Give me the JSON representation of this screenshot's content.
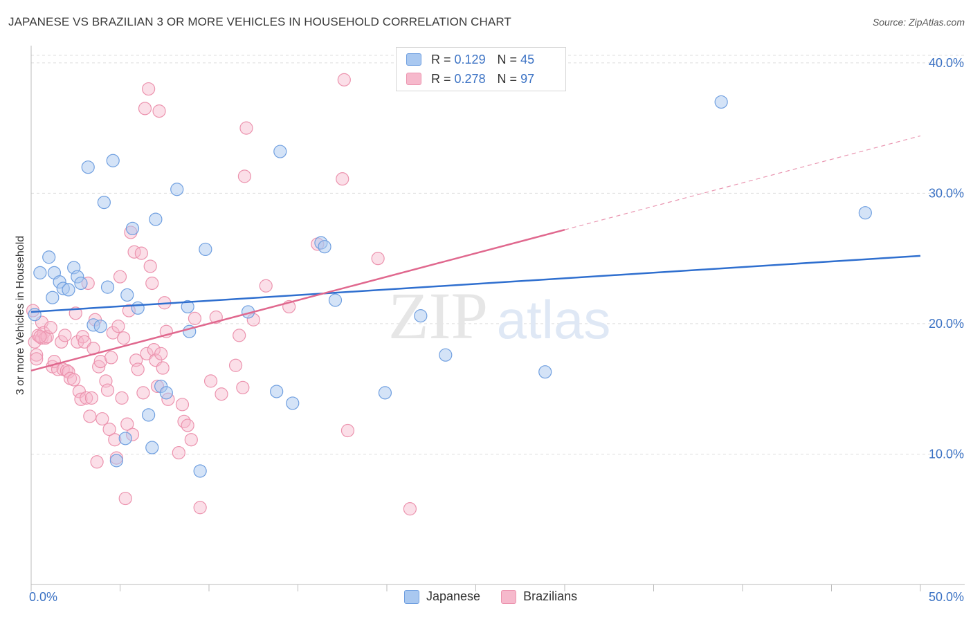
{
  "title": "JAPANESE VS BRAZILIAN 3 OR MORE VEHICLES IN HOUSEHOLD CORRELATION CHART",
  "source": "Source: ZipAtlas.com",
  "watermark": {
    "zip": "ZIP",
    "atlas": "atlas"
  },
  "legend": {
    "r_label": "R =",
    "n_label": "N =",
    "japanese": {
      "r": "0.129",
      "n": "45"
    },
    "brazilians": {
      "r": "0.278",
      "n": "97"
    }
  },
  "colors": {
    "japanese_fill": "#a9c8f0",
    "japanese_stroke": "#6f9fe0",
    "japanese_line": "#2f6fcf",
    "brazilians_fill": "#f6b9cc",
    "brazilians_stroke": "#ec93ae",
    "brazilians_line": "#e0688e",
    "tick_label": "#3b72c4",
    "grid": "#dddddd"
  },
  "chart_data": {
    "type": "scatter",
    "title": "JAPANESE VS BRAZILIAN 3 OR MORE VEHICLES IN HOUSEHOLD CORRELATION CHART",
    "xlabel": "",
    "ylabel": "3 or more Vehicles in Household",
    "xlim": [
      0,
      50
    ],
    "ylim": [
      0,
      41
    ],
    "x_tick_labels": [
      "0.0%",
      "50.0%"
    ],
    "y_ticks": [
      10,
      20,
      30,
      40
    ],
    "y_tick_labels": [
      "10.0%",
      "20.0%",
      "30.0%",
      "40.0%"
    ],
    "grid": true,
    "legend_position": "top-center",
    "series": [
      {
        "name": "Japanese",
        "points": [
          [
            0.5,
            23.9
          ],
          [
            1.0,
            25.1
          ],
          [
            1.2,
            22.0
          ],
          [
            1.3,
            23.9
          ],
          [
            1.6,
            23.2
          ],
          [
            1.8,
            22.7
          ],
          [
            2.1,
            22.6
          ],
          [
            2.4,
            24.3
          ],
          [
            2.6,
            23.6
          ],
          [
            2.8,
            23.1
          ],
          [
            3.2,
            32.0
          ],
          [
            3.5,
            19.9
          ],
          [
            3.9,
            19.8
          ],
          [
            4.1,
            29.3
          ],
          [
            4.3,
            22.8
          ],
          [
            4.6,
            32.5
          ],
          [
            4.8,
            9.5
          ],
          [
            5.3,
            11.2
          ],
          [
            5.4,
            22.2
          ],
          [
            5.7,
            27.3
          ],
          [
            6.0,
            21.2
          ],
          [
            6.6,
            13.0
          ],
          [
            6.8,
            10.5
          ],
          [
            7.0,
            28.0
          ],
          [
            7.3,
            15.2
          ],
          [
            7.6,
            14.7
          ],
          [
            8.2,
            30.3
          ],
          [
            8.8,
            21.3
          ],
          [
            8.9,
            19.4
          ],
          [
            9.5,
            8.7
          ],
          [
            9.8,
            25.7
          ],
          [
            12.2,
            20.9
          ],
          [
            13.8,
            14.8
          ],
          [
            14.0,
            33.2
          ],
          [
            14.7,
            13.9
          ],
          [
            16.3,
            26.2
          ],
          [
            16.5,
            25.9
          ],
          [
            17.1,
            21.8
          ],
          [
            19.9,
            14.7
          ],
          [
            21.9,
            20.6
          ],
          [
            23.3,
            17.6
          ],
          [
            28.9,
            16.3
          ],
          [
            38.8,
            37.0
          ],
          [
            46.9,
            28.5
          ],
          [
            0.2,
            20.7
          ]
        ],
        "trend": {
          "x": [
            0,
            50
          ],
          "y": [
            20.9,
            25.2
          ]
        }
      },
      {
        "name": "Brazilians",
        "points": [
          [
            0.2,
            18.6
          ],
          [
            0.3,
            17.6
          ],
          [
            0.4,
            19.1
          ],
          [
            0.6,
            20.1
          ],
          [
            0.6,
            18.9
          ],
          [
            0.7,
            19.3
          ],
          [
            0.8,
            18.9
          ],
          [
            0.9,
            19.0
          ],
          [
            1.1,
            19.7
          ],
          [
            1.2,
            16.7
          ],
          [
            1.3,
            17.1
          ],
          [
            1.5,
            16.5
          ],
          [
            1.7,
            18.6
          ],
          [
            1.8,
            16.5
          ],
          [
            1.9,
            19.1
          ],
          [
            2.0,
            16.4
          ],
          [
            2.1,
            16.3
          ],
          [
            2.2,
            15.8
          ],
          [
            2.4,
            15.7
          ],
          [
            2.5,
            20.8
          ],
          [
            2.6,
            18.6
          ],
          [
            2.7,
            14.8
          ],
          [
            2.8,
            14.2
          ],
          [
            2.9,
            19.0
          ],
          [
            3.0,
            18.6
          ],
          [
            3.1,
            14.3
          ],
          [
            3.2,
            23.1
          ],
          [
            3.3,
            12.9
          ],
          [
            3.4,
            14.3
          ],
          [
            3.5,
            18.1
          ],
          [
            3.6,
            20.3
          ],
          [
            3.7,
            9.4
          ],
          [
            3.8,
            16.7
          ],
          [
            3.9,
            17.1
          ],
          [
            4.0,
            12.7
          ],
          [
            4.2,
            15.6
          ],
          [
            4.3,
            14.9
          ],
          [
            4.4,
            11.9
          ],
          [
            4.5,
            17.4
          ],
          [
            4.6,
            19.3
          ],
          [
            4.7,
            11.1
          ],
          [
            4.8,
            9.7
          ],
          [
            4.9,
            19.8
          ],
          [
            5.0,
            23.6
          ],
          [
            5.1,
            14.3
          ],
          [
            5.2,
            18.9
          ],
          [
            5.3,
            6.6
          ],
          [
            5.4,
            12.3
          ],
          [
            5.5,
            21.0
          ],
          [
            5.6,
            27.0
          ],
          [
            5.7,
            11.5
          ],
          [
            5.8,
            25.5
          ],
          [
            5.9,
            17.2
          ],
          [
            6.0,
            16.5
          ],
          [
            6.2,
            25.4
          ],
          [
            6.3,
            14.7
          ],
          [
            6.4,
            36.5
          ],
          [
            6.5,
            17.7
          ],
          [
            6.6,
            38.0
          ],
          [
            6.7,
            24.4
          ],
          [
            6.8,
            23.1
          ],
          [
            6.9,
            18.0
          ],
          [
            7.0,
            17.2
          ],
          [
            7.1,
            15.2
          ],
          [
            7.2,
            36.3
          ],
          [
            7.3,
            17.7
          ],
          [
            7.4,
            16.6
          ],
          [
            7.5,
            21.6
          ],
          [
            7.6,
            19.4
          ],
          [
            7.7,
            14.2
          ],
          [
            8.3,
            10.1
          ],
          [
            8.5,
            13.8
          ],
          [
            8.6,
            12.5
          ],
          [
            8.8,
            12.2
          ],
          [
            9.0,
            11.1
          ],
          [
            9.2,
            20.4
          ],
          [
            9.5,
            5.9
          ],
          [
            10.1,
            15.6
          ],
          [
            10.4,
            20.5
          ],
          [
            10.7,
            14.6
          ],
          [
            11.5,
            16.8
          ],
          [
            11.7,
            19.1
          ],
          [
            11.9,
            15.1
          ],
          [
            12.0,
            31.3
          ],
          [
            12.1,
            35.0
          ],
          [
            12.5,
            20.3
          ],
          [
            13.2,
            22.9
          ],
          [
            14.5,
            21.3
          ],
          [
            16.1,
            26.1
          ],
          [
            17.5,
            31.1
          ],
          [
            17.6,
            38.7
          ],
          [
            17.8,
            11.8
          ],
          [
            19.5,
            25.0
          ],
          [
            21.3,
            5.8
          ],
          [
            0.1,
            21.0
          ],
          [
            0.3,
            17.3
          ],
          [
            0.5,
            19.0
          ]
        ],
        "trend": {
          "x": [
            0,
            30
          ],
          "y": [
            16.4,
            27.2
          ]
        },
        "trend_extension": {
          "x": [
            30,
            50
          ],
          "y": [
            27.2,
            34.4
          ]
        }
      }
    ]
  },
  "bottom_legend": {
    "japanese": "Japanese",
    "brazilians": "Brazilians"
  }
}
